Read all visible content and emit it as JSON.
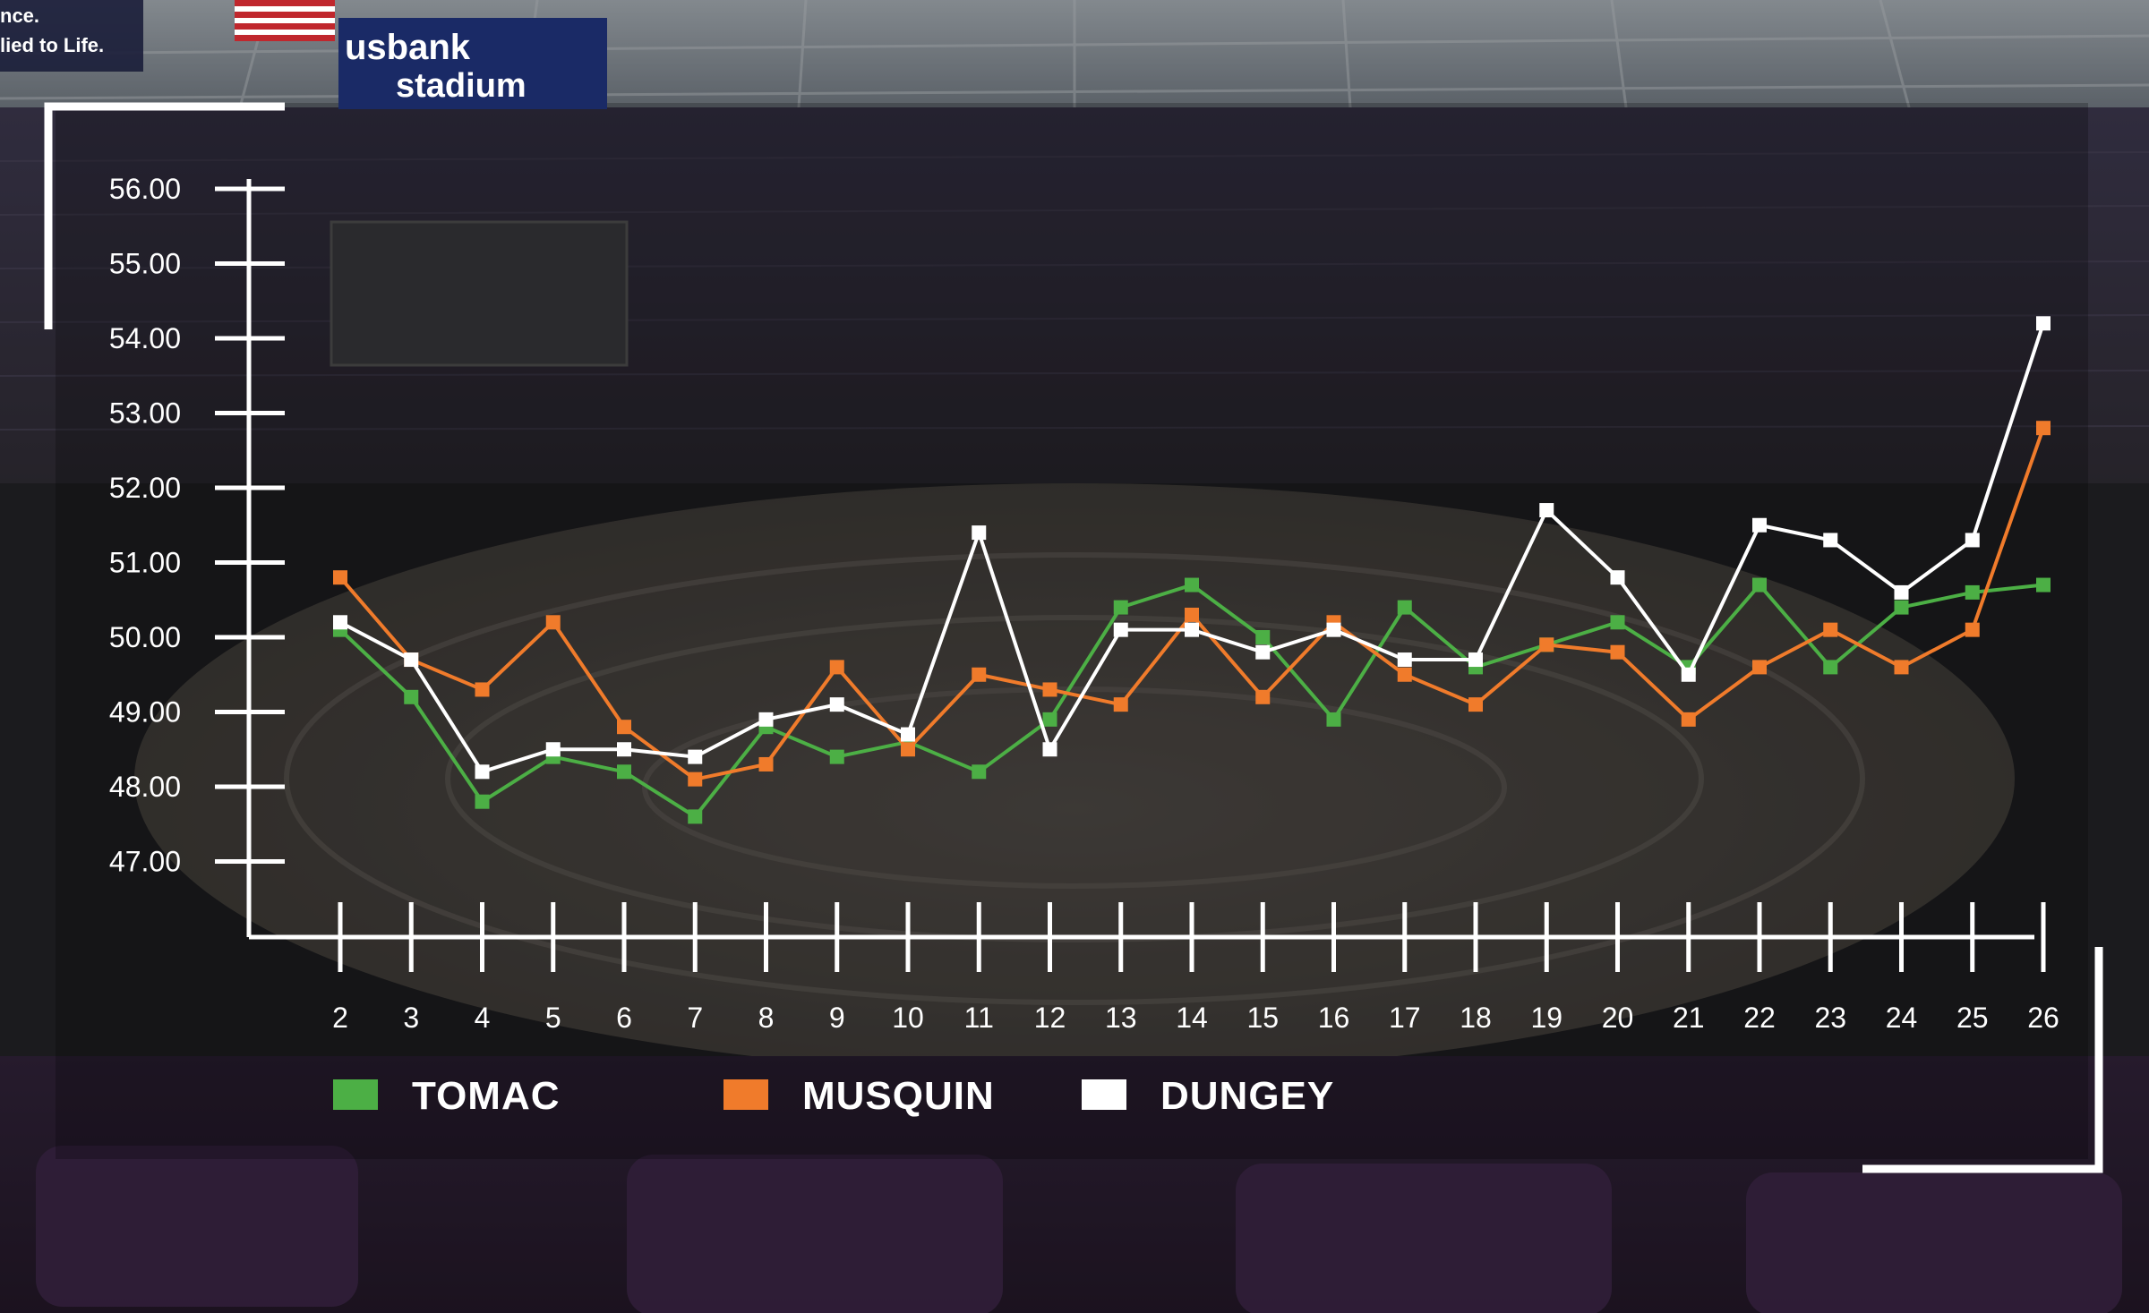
{
  "background": {
    "banner_brand": "usbank",
    "banner_venue": "stadium",
    "corner_text": [
      "nce.",
      "lied to Life."
    ]
  },
  "chart_data": {
    "type": "line",
    "title": "",
    "xlabel": "",
    "ylabel": "",
    "x": [
      2,
      3,
      4,
      5,
      6,
      7,
      8,
      9,
      10,
      11,
      12,
      13,
      14,
      15,
      16,
      17,
      18,
      19,
      20,
      21,
      22,
      23,
      24,
      25,
      26
    ],
    "ylim": [
      46.0,
      56.0
    ],
    "yticks": [
      "56.00",
      "55.00",
      "54.00",
      "53.00",
      "52.00",
      "51.00",
      "50.00",
      "49.00",
      "48.00",
      "47.00"
    ],
    "legend_placement": "bottom",
    "grid": false,
    "series": [
      {
        "name": "TOMAC",
        "color": "#4caf45",
        "values": [
          50.1,
          49.2,
          47.8,
          48.4,
          48.2,
          47.6,
          48.8,
          48.4,
          48.6,
          48.2,
          48.9,
          50.4,
          50.7,
          50.0,
          48.9,
          50.4,
          49.6,
          49.9,
          50.2,
          49.6,
          50.7,
          49.6,
          50.4,
          50.6,
          50.7
        ]
      },
      {
        "name": "MUSQUIN",
        "color": "#f07b2b",
        "values": [
          50.8,
          49.7,
          49.3,
          50.2,
          48.8,
          48.1,
          48.3,
          49.6,
          48.5,
          49.5,
          49.3,
          49.1,
          50.3,
          49.2,
          50.2,
          49.5,
          49.1,
          49.9,
          49.8,
          48.9,
          49.6,
          50.1,
          49.6,
          50.1,
          52.8
        ]
      },
      {
        "name": "DUNGEY",
        "color": "#ffffff",
        "values": [
          50.2,
          49.7,
          48.2,
          48.5,
          48.5,
          48.4,
          48.9,
          49.1,
          48.7,
          51.4,
          48.5,
          50.1,
          50.1,
          49.8,
          50.1,
          49.7,
          49.7,
          51.7,
          50.8,
          49.5,
          51.5,
          51.3,
          50.6,
          51.3,
          54.2
        ]
      }
    ]
  }
}
